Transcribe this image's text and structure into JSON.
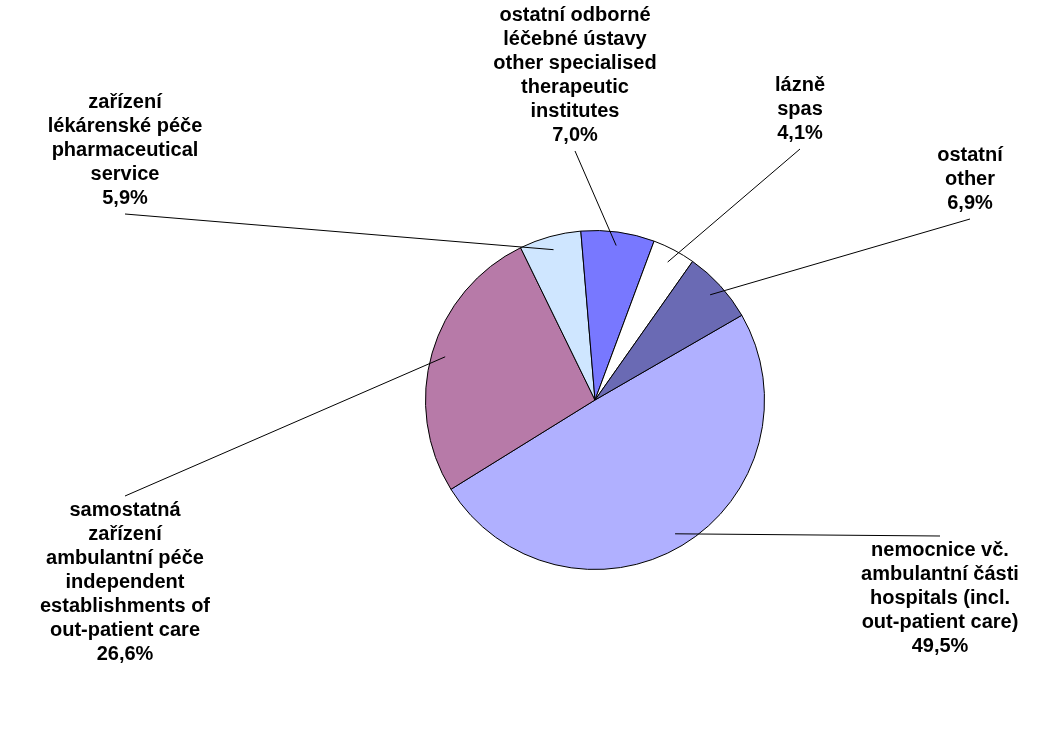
{
  "chart_data": {
    "type": "pie",
    "categories": [
      "nemocnice vč.\nambulantní části\nhospitals (incl.\nout-patient care)",
      "samostatná\nzařízení\nambulantní péče\nindependent\nestablishments of\nout-patient care",
      "zařízení\nlékárenské péče\npharmaceutical\nservice",
      "ostatní odborné\nléčebné ústavy\nother specialised\ntherapeutic\ninstitutes",
      "lázně\nspas",
      "ostatní\nother"
    ],
    "values": [
      49.5,
      26.6,
      5.9,
      7.0,
      4.1,
      6.9
    ],
    "colors": [
      "#b0b0ff",
      "#b77aa8",
      "#cfe6ff",
      "#7878ff",
      "#ffffff",
      "#6a6ab4"
    ],
    "value_labels": [
      "49,5%",
      "26,6%",
      "5,9%",
      "7,0%",
      "4,1%",
      "6,9%"
    ],
    "legend": false
  }
}
